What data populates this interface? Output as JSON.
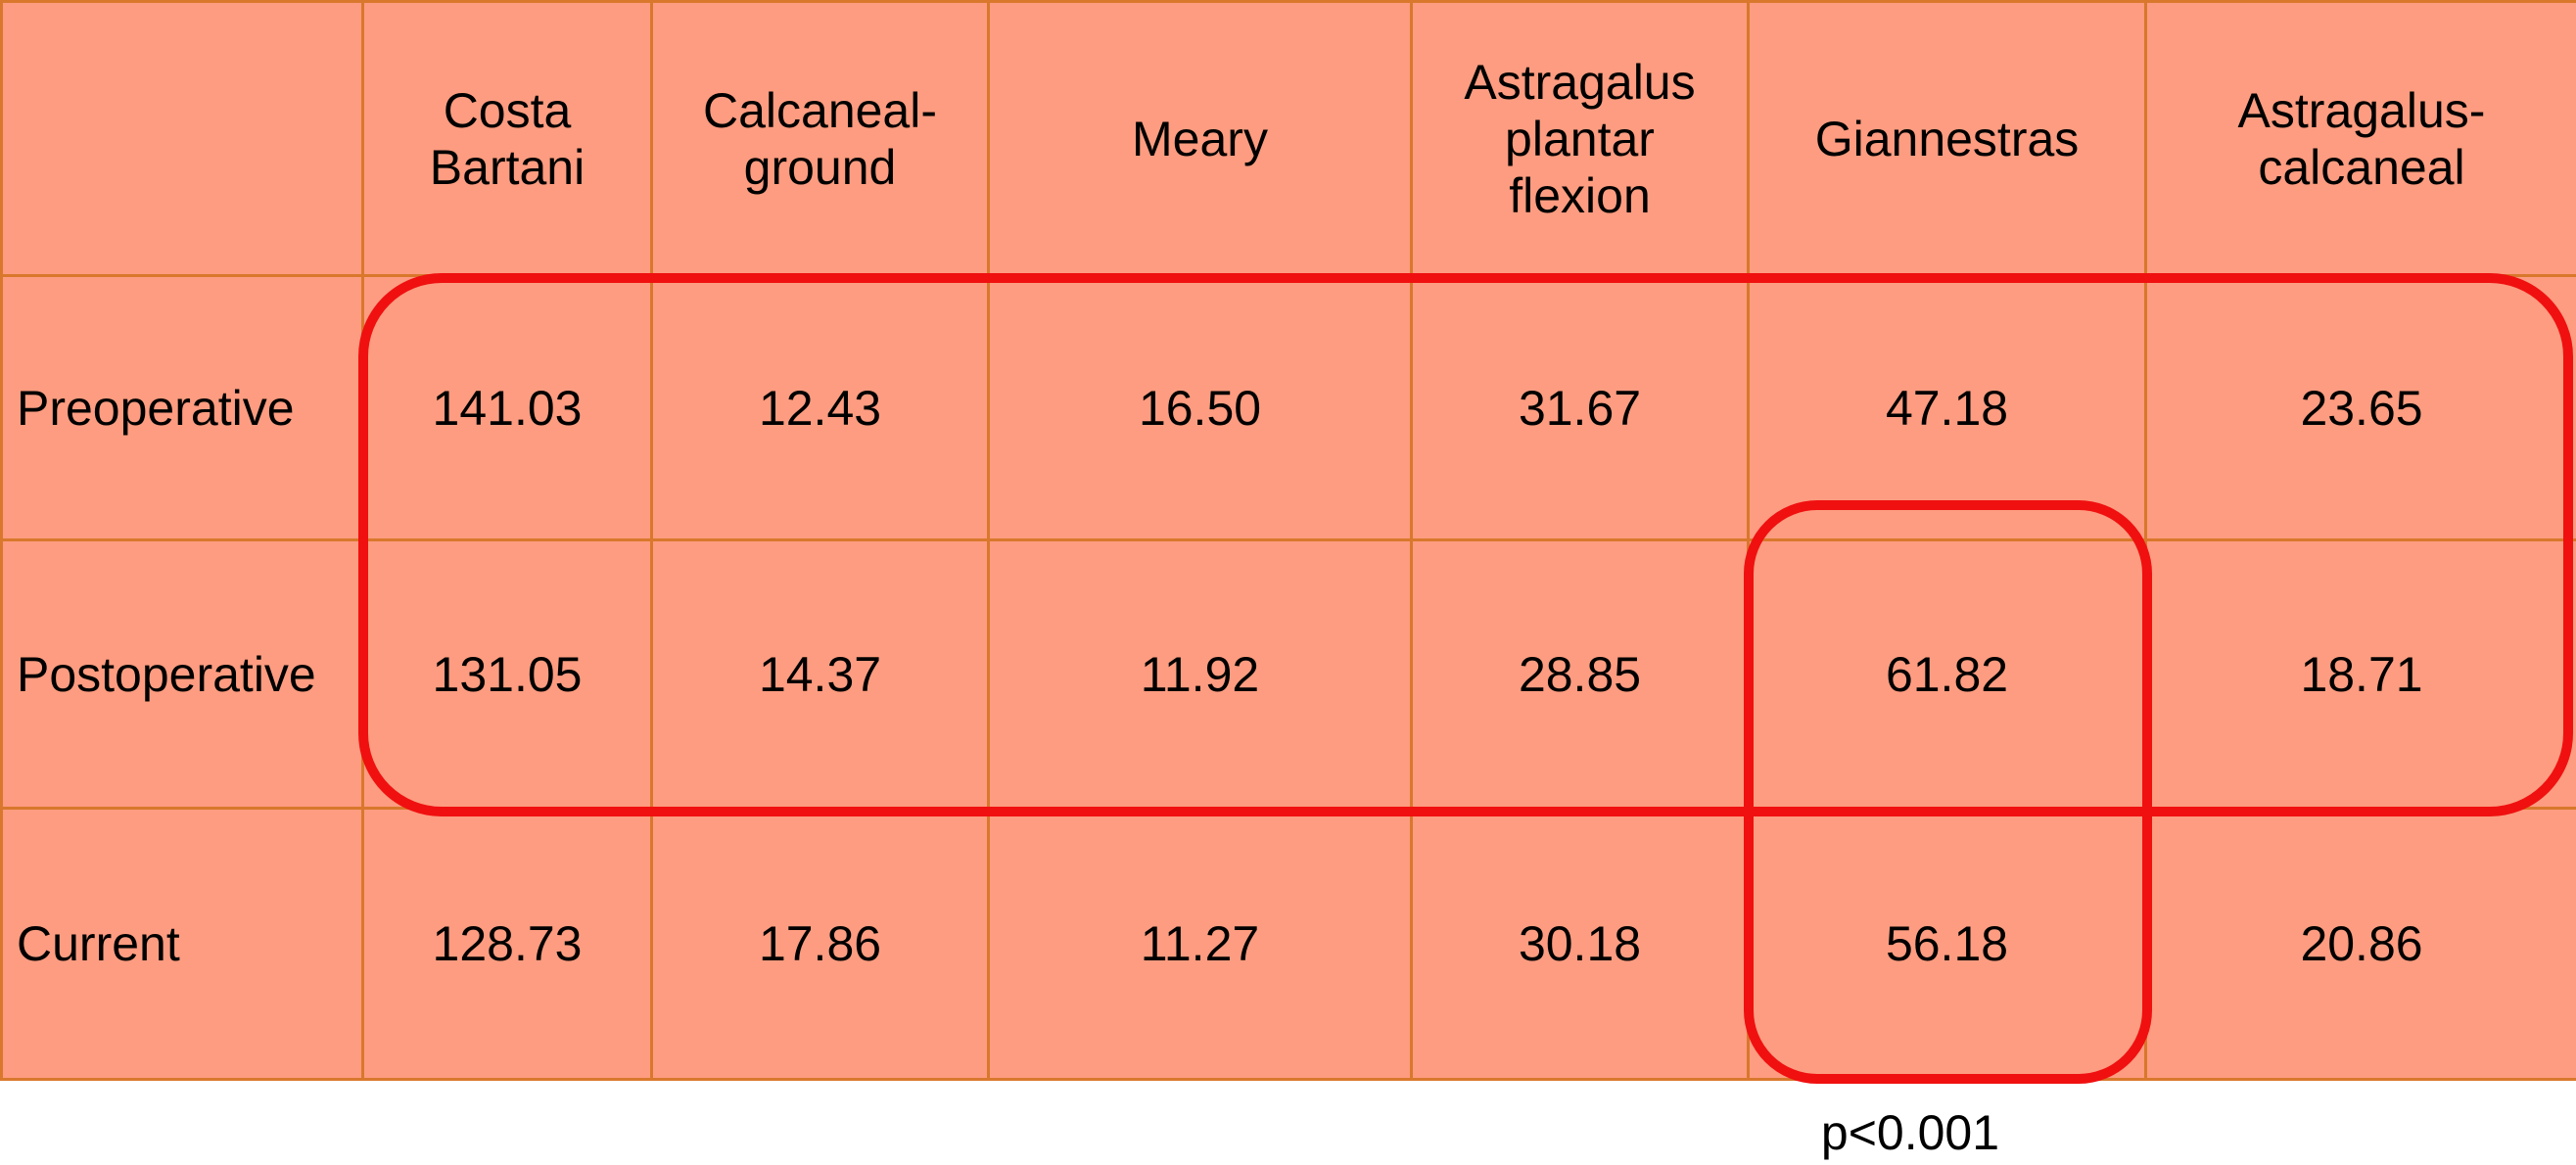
{
  "table": {
    "header": [
      [
        "Costa",
        "Bartani"
      ],
      [
        "Calcaneal-",
        "ground"
      ],
      [
        "Meary"
      ],
      [
        "Astragalus",
        "plantar",
        "flexion"
      ],
      [
        "Giannestras"
      ],
      [
        "Astragalus-",
        "calcaneal"
      ]
    ],
    "rows": [
      [
        "Preoperative",
        "141.03",
        "12.43",
        "16.50",
        "31.67",
        "47.18",
        "23.65"
      ],
      [
        "Postoperative",
        "131.05",
        "14.37",
        "11.92",
        "28.85",
        "61.82",
        "18.71"
      ],
      [
        "Current",
        "128.73",
        "17.86",
        "11.27",
        "30.18",
        "56.18",
        "20.86"
      ]
    ]
  },
  "note": "p<0.001"
}
